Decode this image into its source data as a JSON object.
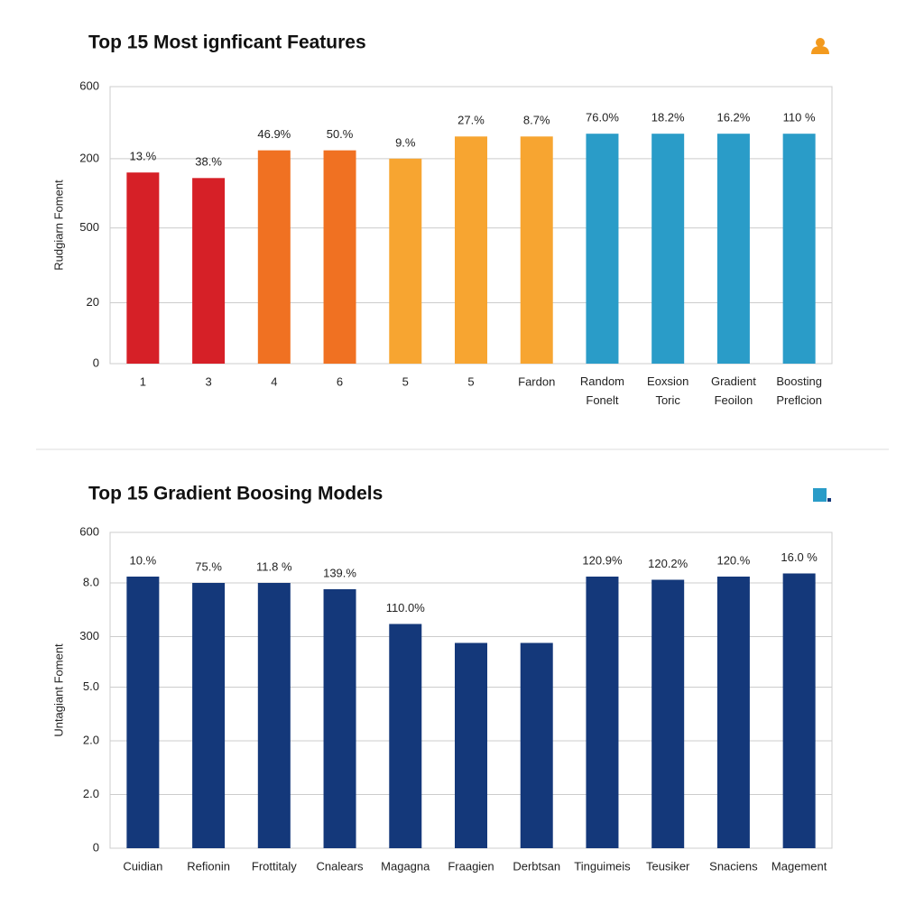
{
  "chart_data": [
    {
      "type": "bar",
      "title": "Top 15 Most ignficant Features",
      "y_label": "Rudgiarn Foment",
      "categories": [
        "1",
        "3",
        "4",
        "6",
        "5",
        "5",
        "Fardon",
        "Random Fonelt",
        "Eoxsion Toric",
        "Gradient Feoilon",
        "Boosting Preflcion"
      ],
      "values": [
        69,
        67,
        77,
        77,
        74,
        82,
        82,
        83,
        83,
        83,
        83
      ],
      "bar_labels": [
        "13.%",
        "38.%",
        "46.9%",
        "50.%",
        "9.%",
        "27.%",
        "8.7%",
        "76.0%",
        "18.2%",
        "16.2%",
        "110 %"
      ],
      "colors": [
        "#d62027",
        "#d62027",
        "#f07122",
        "#f07122",
        "#f7a531",
        "#f7a531",
        "#f7a531",
        "#2a9cc8",
        "#2a9cc8",
        "#2a9cc8",
        "#2a9cc8"
      ],
      "ylim": [
        0,
        100
      ],
      "yticks": [
        0,
        {
          "value": 22,
          "label": "20"
        },
        {
          "value": 49,
          "label": "500"
        },
        {
          "value": 74,
          "label": "200"
        },
        {
          "value": 100,
          "label": "600"
        }
      ],
      "grid": true
    },
    {
      "type": "bar",
      "title": "Top 15 Gradient Boosing Models",
      "y_label": "Untagiant Foment",
      "categories": [
        "Cuidian",
        "Refionin",
        "Frottitaly",
        "Cnalears",
        "Magagna",
        "Fraagien",
        "Derbtsan",
        "Tinguimeis",
        "Teusiker",
        "Snaciens",
        "Magement"
      ],
      "values": [
        86,
        84,
        84,
        82,
        71,
        65,
        65,
        86,
        85,
        86,
        87
      ],
      "bar_labels": [
        "10.%",
        "75.%",
        "11.8 %",
        "139.%",
        "110.0%",
        null,
        null,
        "120.9%",
        "120.2%",
        "120.%",
        "16.0 %"
      ],
      "colors": [
        "#14387a",
        "#14387a",
        "#14387a",
        "#14387a",
        "#14387a",
        "#14387a",
        "#14387a",
        "#14387a",
        "#14387a",
        "#14387a",
        "#14387a"
      ],
      "ylim": [
        0,
        100
      ],
      "yticks": [
        0,
        {
          "value": 17,
          "label": "2.0"
        },
        {
          "value": 34,
          "label": "2.0"
        },
        {
          "value": 51,
          "label": "5.0"
        },
        {
          "value": 67,
          "label": "300"
        },
        {
          "value": 84,
          "label": "8.0"
        },
        {
          "value": 100,
          "label": "600"
        }
      ],
      "grid": true
    }
  ]
}
